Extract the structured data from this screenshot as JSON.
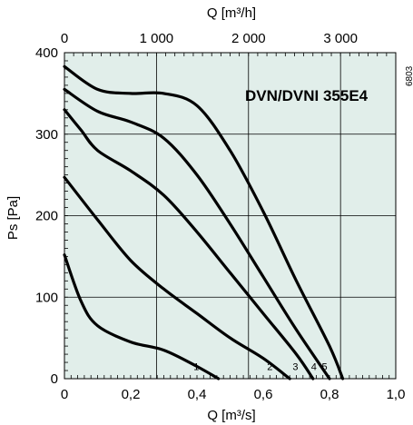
{
  "chart_data": {
    "type": "line",
    "title": "DVN/DVNI 355E4",
    "side_code": "6803",
    "xlabel": "Q [m³/s]",
    "x2label": "Q [m³/h]",
    "ylabel": "Ps [Pa]",
    "xlim": [
      0,
      1.0
    ],
    "ylim": [
      0,
      400
    ],
    "x2lim": [
      0,
      3600
    ],
    "x_ticks": [
      {
        "value": 0,
        "label": "0"
      },
      {
        "value": 0.2,
        "label": "0,2"
      },
      {
        "value": 0.4,
        "label": "0,4"
      },
      {
        "value": 0.6,
        "label": "0,6"
      },
      {
        "value": 0.8,
        "label": "0,8"
      },
      {
        "value": 1.0,
        "label": "1,0"
      }
    ],
    "x2_ticks": [
      {
        "value": 0,
        "label": "0"
      },
      {
        "value": 1000,
        "label": "1 000"
      },
      {
        "value": 2000,
        "label": "2 000"
      },
      {
        "value": 3000,
        "label": "3 000"
      }
    ],
    "y_ticks": [
      {
        "value": 0,
        "label": "0"
      },
      {
        "value": 100,
        "label": "100"
      },
      {
        "value": 200,
        "label": "200"
      },
      {
        "value": 300,
        "label": "300"
      },
      {
        "value": 400,
        "label": "400"
      }
    ],
    "grid": true,
    "background_color": "#e1eeea",
    "line_color": "#000000",
    "series": [
      {
        "name": "1",
        "points": [
          [
            0,
            152
          ],
          [
            0.05,
            95
          ],
          [
            0.1,
            65
          ],
          [
            0.2,
            45
          ],
          [
            0.3,
            35
          ],
          [
            0.4,
            15
          ],
          [
            0.465,
            0
          ]
        ]
      },
      {
        "name": "2",
        "points": [
          [
            0,
            247
          ],
          [
            0.1,
            195
          ],
          [
            0.2,
            145
          ],
          [
            0.3,
            110
          ],
          [
            0.4,
            80
          ],
          [
            0.5,
            50
          ],
          [
            0.6,
            25
          ],
          [
            0.68,
            0
          ]
        ]
      },
      {
        "name": "3",
        "points": [
          [
            0,
            330
          ],
          [
            0.05,
            305
          ],
          [
            0.1,
            280
          ],
          [
            0.2,
            255
          ],
          [
            0.3,
            225
          ],
          [
            0.4,
            180
          ],
          [
            0.5,
            130
          ],
          [
            0.6,
            80
          ],
          [
            0.7,
            30
          ],
          [
            0.75,
            0
          ]
        ]
      },
      {
        "name": "4",
        "points": [
          [
            0,
            355
          ],
          [
            0.1,
            328
          ],
          [
            0.2,
            315
          ],
          [
            0.3,
            295
          ],
          [
            0.4,
            250
          ],
          [
            0.5,
            190
          ],
          [
            0.6,
            125
          ],
          [
            0.7,
            60
          ],
          [
            0.8,
            0
          ]
        ]
      },
      {
        "name": "5",
        "points": [
          [
            0,
            383
          ],
          [
            0.1,
            355
          ],
          [
            0.2,
            350
          ],
          [
            0.3,
            350
          ],
          [
            0.4,
            335
          ],
          [
            0.5,
            280
          ],
          [
            0.6,
            205
          ],
          [
            0.7,
            120
          ],
          [
            0.8,
            40
          ],
          [
            0.84,
            0
          ]
        ]
      }
    ],
    "curve_label_points": {
      "1": [
        0.398,
        15
      ],
      "2": [
        0.62,
        15
      ],
      "3": [
        0.697,
        15
      ],
      "4": [
        0.753,
        15
      ],
      "5": [
        0.785,
        15
      ]
    }
  }
}
